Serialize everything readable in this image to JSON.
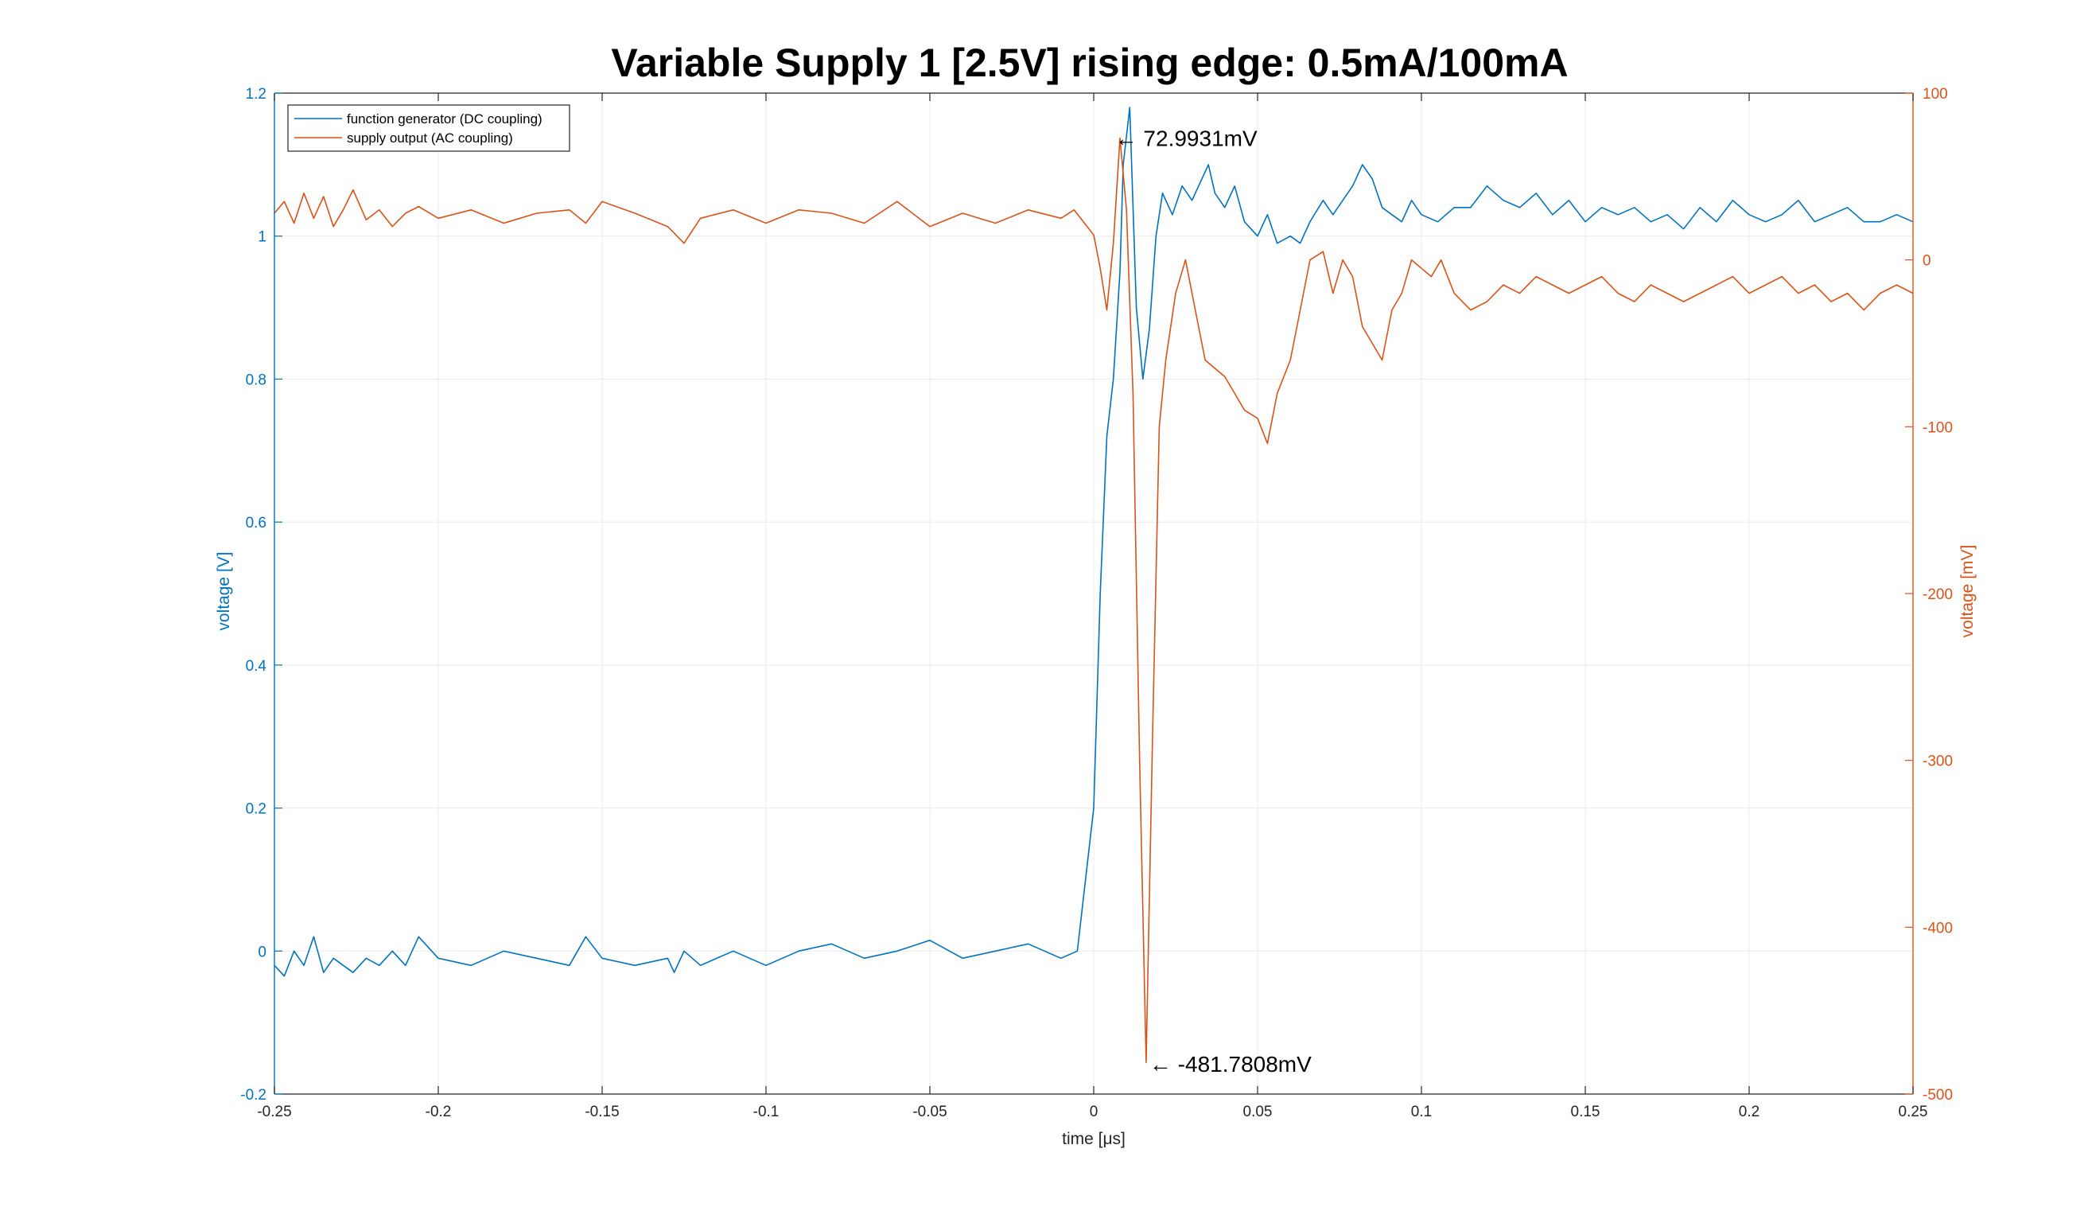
{
  "colors": {
    "blue": "#0072BD",
    "orange": "#D95319",
    "grid": "#ebebeb",
    "axis_black": "#262626"
  },
  "chart_data": {
    "type": "line",
    "title": "Variable Supply 1 [2.5V] rising edge: 0.5mA/100mA",
    "xlabel": "time [μs]",
    "ylabel_left": "voltage [V]",
    "ylabel_right": "voltage [mV]",
    "xlim": [
      -0.25,
      0.25
    ],
    "ylim_left": [
      -0.2,
      1.2
    ],
    "ylim_right": [
      -500,
      100
    ],
    "xticks": [
      "-0.25",
      "-0.2",
      "-0.15",
      "-0.1",
      "-0.05",
      "0",
      "0.05",
      "0.1",
      "0.15",
      "0.2",
      "0.25"
    ],
    "yticks_left": [
      "-0.2",
      "0",
      "0.2",
      "0.4",
      "0.6",
      "0.8",
      "1",
      "1.2"
    ],
    "yticks_right": [
      "-500",
      "-400",
      "-300",
      "-200",
      "-100",
      "0",
      "100"
    ],
    "grid": true,
    "legend_position": "top-left",
    "series": [
      {
        "name": "function generator (DC coupling)",
        "axis": "left",
        "color": "#0072BD",
        "x": [
          -0.25,
          -0.247,
          -0.244,
          -0.241,
          -0.238,
          -0.235,
          -0.232,
          -0.229,
          -0.226,
          -0.222,
          -0.218,
          -0.214,
          -0.21,
          -0.206,
          -0.2,
          -0.19,
          -0.18,
          -0.17,
          -0.16,
          -0.155,
          -0.15,
          -0.14,
          -0.13,
          -0.128,
          -0.125,
          -0.12,
          -0.11,
          -0.1,
          -0.09,
          -0.08,
          -0.07,
          -0.06,
          -0.05,
          -0.04,
          -0.03,
          -0.02,
          -0.01,
          -0.005,
          0.0,
          0.002,
          0.004,
          0.006,
          0.008,
          0.009,
          0.011,
          0.013,
          0.015,
          0.017,
          0.019,
          0.021,
          0.024,
          0.027,
          0.03,
          0.033,
          0.035,
          0.037,
          0.04,
          0.043,
          0.046,
          0.05,
          0.053,
          0.056,
          0.06,
          0.063,
          0.066,
          0.07,
          0.073,
          0.076,
          0.079,
          0.082,
          0.085,
          0.088,
          0.091,
          0.094,
          0.097,
          0.1,
          0.105,
          0.11,
          0.115,
          0.12,
          0.125,
          0.13,
          0.135,
          0.14,
          0.145,
          0.15,
          0.155,
          0.16,
          0.165,
          0.17,
          0.175,
          0.18,
          0.185,
          0.19,
          0.195,
          0.2,
          0.205,
          0.21,
          0.215,
          0.22,
          0.225,
          0.23,
          0.235,
          0.24,
          0.245,
          0.25
        ],
        "y": [
          -0.02,
          -0.035,
          0.0,
          -0.02,
          0.02,
          -0.03,
          -0.01,
          -0.02,
          -0.03,
          -0.01,
          -0.02,
          0.0,
          -0.02,
          0.02,
          -0.01,
          -0.02,
          0.0,
          -0.01,
          -0.02,
          0.02,
          -0.01,
          -0.02,
          -0.01,
          -0.03,
          0.0,
          -0.02,
          0.0,
          -0.02,
          0.0,
          0.01,
          -0.01,
          0.0,
          0.015,
          -0.01,
          0.0,
          0.01,
          -0.01,
          0.0,
          0.2,
          0.5,
          0.72,
          0.8,
          0.95,
          1.1,
          1.18,
          0.9,
          0.8,
          0.87,
          1.0,
          1.06,
          1.03,
          1.07,
          1.05,
          1.08,
          1.1,
          1.06,
          1.04,
          1.07,
          1.02,
          1.0,
          1.03,
          0.99,
          1.0,
          0.99,
          1.02,
          1.05,
          1.03,
          1.05,
          1.07,
          1.1,
          1.08,
          1.04,
          1.03,
          1.02,
          1.05,
          1.03,
          1.02,
          1.04,
          1.04,
          1.07,
          1.05,
          1.04,
          1.06,
          1.03,
          1.05,
          1.02,
          1.04,
          1.03,
          1.04,
          1.02,
          1.03,
          1.01,
          1.04,
          1.02,
          1.05,
          1.03,
          1.02,
          1.03,
          1.05,
          1.02,
          1.03,
          1.04,
          1.02,
          1.02,
          1.03,
          1.02
        ]
      },
      {
        "name": "supply output (AC coupling)",
        "axis": "right",
        "color": "#D95319",
        "x": [
          -0.25,
          -0.247,
          -0.244,
          -0.241,
          -0.238,
          -0.235,
          -0.232,
          -0.229,
          -0.226,
          -0.222,
          -0.218,
          -0.214,
          -0.21,
          -0.206,
          -0.2,
          -0.19,
          -0.18,
          -0.17,
          -0.16,
          -0.155,
          -0.15,
          -0.14,
          -0.13,
          -0.125,
          -0.12,
          -0.11,
          -0.1,
          -0.09,
          -0.08,
          -0.07,
          -0.06,
          -0.05,
          -0.04,
          -0.03,
          -0.02,
          -0.01,
          -0.006,
          0.0,
          0.002,
          0.004,
          0.006,
          0.008,
          0.01,
          0.012,
          0.014,
          0.016,
          0.018,
          0.02,
          0.022,
          0.025,
          0.028,
          0.031,
          0.034,
          0.037,
          0.04,
          0.043,
          0.046,
          0.05,
          0.053,
          0.056,
          0.06,
          0.063,
          0.066,
          0.07,
          0.073,
          0.076,
          0.079,
          0.082,
          0.085,
          0.088,
          0.091,
          0.094,
          0.097,
          0.1,
          0.103,
          0.106,
          0.11,
          0.115,
          0.12,
          0.125,
          0.13,
          0.135,
          0.14,
          0.145,
          0.15,
          0.155,
          0.16,
          0.165,
          0.17,
          0.175,
          0.18,
          0.185,
          0.19,
          0.195,
          0.2,
          0.205,
          0.21,
          0.215,
          0.22,
          0.225,
          0.23,
          0.235,
          0.24,
          0.245,
          0.25
        ],
        "y": [
          28,
          35,
          22,
          40,
          25,
          38,
          20,
          30,
          42,
          24,
          30,
          20,
          28,
          32,
          25,
          30,
          22,
          28,
          30,
          22,
          35,
          28,
          20,
          10,
          25,
          30,
          22,
          30,
          28,
          22,
          35,
          20,
          28,
          22,
          30,
          25,
          30,
          15,
          -5,
          -30,
          10,
          73,
          30,
          -80,
          -300,
          -481,
          -280,
          -100,
          -60,
          -20,
          0,
          -30,
          -60,
          -65,
          -70,
          -80,
          -90,
          -95,
          -110,
          -80,
          -60,
          -30,
          0,
          5,
          -20,
          0,
          -10,
          -40,
          -50,
          -60,
          -30,
          -20,
          0,
          -5,
          -10,
          0,
          -20,
          -30,
          -25,
          -15,
          -20,
          -10,
          -15,
          -20,
          -15,
          -10,
          -20,
          -25,
          -15,
          -20,
          -25,
          -20,
          -15,
          -10,
          -20,
          -15,
          -10,
          -20,
          -15,
          -25,
          -20,
          -30,
          -20,
          -15,
          -20
        ]
      }
    ],
    "annotations": [
      {
        "text": "← 72.9931mV",
        "x": 0.0055,
        "y": 72.9931,
        "axis": "right"
      },
      {
        "text": "← -481.7808mV",
        "x": 0.016,
        "y": -481.7808,
        "axis": "right"
      }
    ]
  }
}
